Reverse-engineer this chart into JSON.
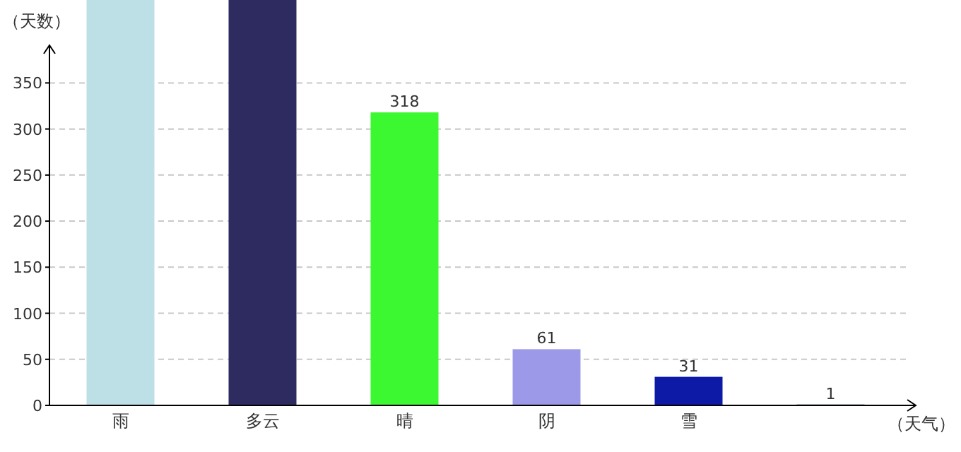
{
  "chart_data": {
    "type": "bar",
    "categories": [
      "雨",
      "多云",
      "晴",
      "阴",
      "雪",
      null
    ],
    "values": [
      440,
      440,
      318,
      61,
      31,
      1
    ],
    "colors": [
      "#bde0e6",
      "#2e2b60",
      "#3cf830",
      "#9b99e8",
      "#0c1aa6",
      "#1e3f5a"
    ],
    "value_labels": [
      null,
      null,
      "318",
      "61",
      "31",
      "1"
    ],
    "ylim": [
      0,
      440
    ],
    "yticks": [
      0,
      50,
      100,
      150,
      200,
      250,
      300,
      350
    ],
    "ylabel": "（天数）",
    "xlabel": "（天气）",
    "grid": "y"
  }
}
